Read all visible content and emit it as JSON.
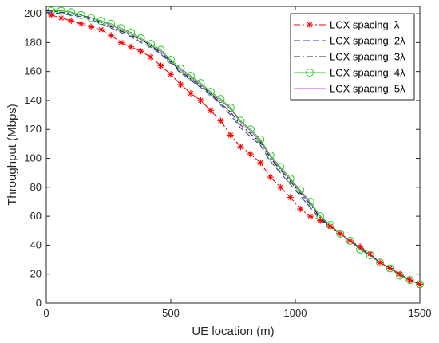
{
  "chart_data": {
    "type": "line",
    "xlabel": "UE location (m)",
    "ylabel": "Throughput (Mbps)",
    "xlim": [
      0,
      1500
    ],
    "ylim": [
      0,
      205
    ],
    "xticks": [
      0,
      500,
      1000,
      1500
    ],
    "yticks": [
      0,
      20,
      40,
      60,
      80,
      100,
      120,
      140,
      160,
      180,
      200
    ],
    "grid": false,
    "legend_position": "top-right",
    "series": [
      {
        "name": "LCX spacing: λ",
        "color": "#ff0000",
        "line_style": "dash-dot",
        "marker": "asterisk",
        "x": [
          20,
          60,
          100,
          140,
          180,
          220,
          260,
          300,
          340,
          380,
          420,
          460,
          500,
          540,
          580,
          620,
          660,
          700,
          740,
          780,
          820,
          860,
          900,
          940,
          980,
          1020,
          1060,
          1100,
          1140,
          1180,
          1220,
          1260,
          1300,
          1340,
          1380,
          1420,
          1460,
          1500
        ],
        "y": [
          199,
          197,
          195,
          193,
          191,
          189,
          185,
          180,
          177,
          174,
          170,
          164,
          158,
          151,
          145,
          140,
          133,
          126,
          116,
          108,
          103,
          97,
          87,
          80,
          73,
          65,
          60,
          57,
          53,
          48,
          43,
          39,
          34,
          28,
          24,
          20,
          16,
          13
        ]
      },
      {
        "name": "LCX spacing: 2λ",
        "color": "#2b3fbf",
        "line_style": "dashed",
        "marker": "none",
        "x": [
          0,
          60,
          100,
          140,
          180,
          220,
          260,
          300,
          340,
          380,
          420,
          460,
          500,
          540,
          580,
          620,
          660,
          700,
          740,
          780,
          820,
          860,
          900,
          940,
          980,
          1020,
          1060,
          1100,
          1140,
          1180,
          1220,
          1260,
          1300,
          1340,
          1380,
          1420,
          1460,
          1500
        ],
        "y": [
          201,
          200,
          199,
          198,
          196,
          193,
          190,
          187,
          184,
          180,
          177,
          172,
          166,
          159,
          154,
          149,
          144,
          137,
          130,
          121,
          115,
          109,
          98,
          90,
          82,
          74,
          66,
          58,
          53,
          48,
          43,
          38,
          33,
          28,
          24,
          20,
          16,
          13
        ]
      },
      {
        "name": "LCX spacing: 3λ",
        "color": "#262626",
        "line_style": "dash-dot",
        "marker": "none",
        "x": [
          0,
          60,
          100,
          140,
          180,
          220,
          260,
          300,
          340,
          380,
          420,
          460,
          500,
          540,
          580,
          620,
          660,
          700,
          740,
          780,
          820,
          860,
          900,
          940,
          980,
          1020,
          1060,
          1100,
          1140,
          1180,
          1220,
          1260,
          1300,
          1340,
          1380,
          1420,
          1460,
          1500
        ],
        "y": [
          202,
          201,
          200,
          199,
          197,
          194,
          191,
          188,
          185,
          182,
          178,
          173,
          167,
          160,
          155,
          150,
          145,
          138,
          132,
          123,
          117,
          111,
          100,
          92,
          84,
          76,
          68,
          59,
          53,
          48,
          43,
          38,
          33,
          28,
          24,
          20,
          16,
          13
        ]
      },
      {
        "name": "LCX spacing: 4λ",
        "color": "#22cc22",
        "line_style": "solid",
        "marker": "circle",
        "x": [
          20,
          60,
          100,
          140,
          180,
          220,
          260,
          300,
          340,
          380,
          420,
          460,
          500,
          540,
          580,
          620,
          660,
          700,
          740,
          780,
          820,
          860,
          900,
          940,
          980,
          1020,
          1060,
          1100,
          1140,
          1180,
          1220,
          1260,
          1300,
          1340,
          1380,
          1420,
          1460,
          1500
        ],
        "y": [
          202,
          202,
          201,
          199,
          197,
          195,
          193,
          190,
          187,
          183,
          179,
          175,
          168,
          162,
          157,
          152,
          146,
          141,
          135,
          126,
          120,
          113,
          102,
          94,
          86,
          78,
          70,
          60,
          54,
          48,
          43,
          37,
          33,
          28,
          24,
          19,
          16,
          13
        ]
      },
      {
        "name": "LCX spacing: 5λ",
        "color": "#e040e0",
        "line_style": "solid",
        "marker": "none",
        "x": [
          0,
          60,
          100,
          140,
          180,
          220,
          260,
          300,
          340,
          380,
          420,
          460,
          500,
          540,
          580,
          620,
          660,
          700,
          740,
          780,
          820,
          860,
          900,
          940,
          980,
          1020,
          1060,
          1100,
          1140,
          1180,
          1220,
          1260,
          1300,
          1340,
          1380,
          1420,
          1460,
          1500
        ],
        "y": [
          202,
          202,
          201,
          199,
          197,
          195,
          192,
          189,
          186,
          182,
          178,
          174,
          167,
          161,
          156,
          151,
          145,
          140,
          134,
          125,
          119,
          112,
          101,
          93,
          85,
          77,
          69,
          60,
          54,
          48,
          43,
          37,
          33,
          28,
          24,
          19,
          16,
          13
        ]
      }
    ]
  }
}
